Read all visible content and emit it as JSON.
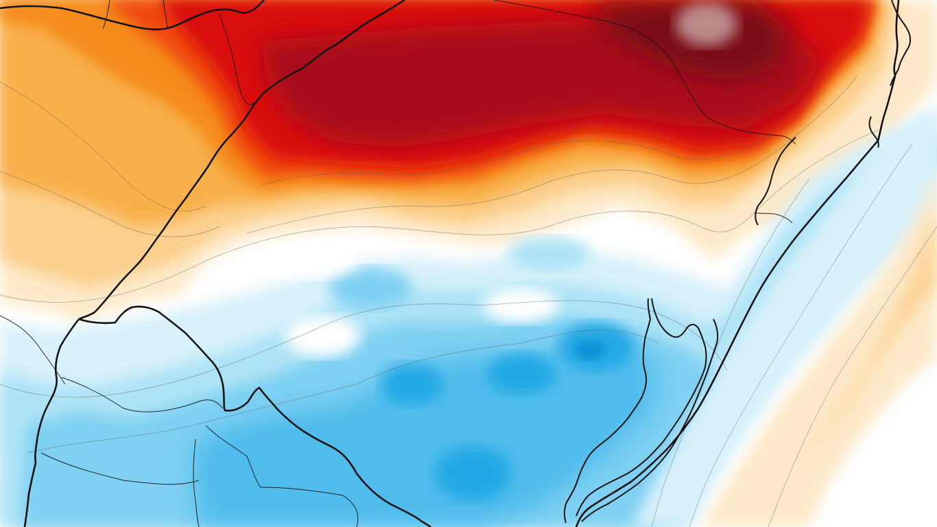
{
  "map": {
    "type": "anomaly-heatmap",
    "palette": {
      "hot_darkest": "#7a0d12",
      "hot_dark": "#a8111a",
      "hot": "#d90f0f",
      "hot_light": "#ef4a10",
      "warm": "#f58b1b",
      "warm_light": "#f8b04b",
      "warm_pale": "#fbd08e",
      "neutral_warm": "#fde9c9",
      "neutral": "#ffffff",
      "cool_pale": "#d8f1fb",
      "cool_light": "#aee3f6",
      "cool": "#7fd0f2",
      "cool_mid": "#4fbcec",
      "cool_dark": "#22a8e4",
      "cool_darkest": "#0f93d8",
      "land_border": "#111111",
      "contour": "#5a5a5a"
    },
    "features": [
      "temperature-anomaly-field",
      "state-borders",
      "international-border",
      "coastline",
      "lagoon-shoreline",
      "contour-lines"
    ]
  }
}
